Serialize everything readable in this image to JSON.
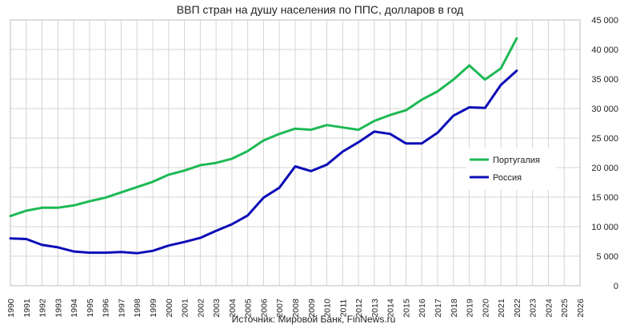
{
  "chart_data": {
    "type": "line",
    "title": "ВВП стран на душу населения по ППС, долларов в год",
    "source_note": "Источник: Мировой Банк, FinNews.ru",
    "xlabel": "",
    "ylabel": "",
    "x_range": [
      1990,
      2026
    ],
    "ylim": [
      0,
      45000
    ],
    "y_ticks": [
      0,
      5000,
      10000,
      15000,
      20000,
      25000,
      30000,
      35000,
      40000,
      45000
    ],
    "y_tick_labels": [
      "0",
      "5 000",
      "10 000",
      "15 000",
      "20 000",
      "25 000",
      "30 000",
      "35 000",
      "40 000",
      "45 000"
    ],
    "x_ticks": [
      1990,
      1991,
      1992,
      1993,
      1994,
      1995,
      1996,
      1997,
      1998,
      1999,
      2000,
      2001,
      2002,
      2003,
      2004,
      2005,
      2006,
      2007,
      2008,
      2009,
      2010,
      2011,
      2012,
      2013,
      2014,
      2015,
      2016,
      2017,
      2018,
      2019,
      2020,
      2021,
      2022,
      2023,
      2024,
      2025,
      2026
    ],
    "x_tick_labels": [
      "1990",
      "1991",
      "1992",
      "1993",
      "1994",
      "1995",
      "1996",
      "1997",
      "1998",
      "1999",
      "2000",
      "2001",
      "2002",
      "2003",
      "2004",
      "2005",
      "2006",
      "2007",
      "2008",
      "2009",
      "2010",
      "2011",
      "2012",
      "2013",
      "2014",
      "2015",
      "2016",
      "2017",
      "2018",
      "2019",
      "2020",
      "2021",
      "2022",
      "2023",
      "2024",
      "2025",
      "2026"
    ],
    "grid": true,
    "y_axis_side": "right",
    "legend_placement": "right",
    "series": [
      {
        "name": "Португалия",
        "color": "#1db954",
        "x": [
          1990,
          1991,
          1992,
          1993,
          1994,
          1995,
          1996,
          1997,
          1998,
          1999,
          2000,
          2001,
          2002,
          2003,
          2004,
          2005,
          2006,
          2007,
          2008,
          2009,
          2010,
          2011,
          2012,
          2013,
          2014,
          2015,
          2016,
          2017,
          2018,
          2019,
          2020,
          2021,
          2022
        ],
        "values": [
          11800,
          12700,
          13200,
          13200,
          13600,
          14300,
          14900,
          15800,
          16700,
          17600,
          18800,
          19500,
          20400,
          20800,
          21500,
          22800,
          24600,
          25700,
          26600,
          26400,
          27200,
          26800,
          26400,
          27900,
          28900,
          29700,
          31500,
          32900,
          34900,
          37300,
          34900,
          36800,
          41900
        ]
      },
      {
        "name": "Россия",
        "color": "#0c0cb8",
        "x": [
          1990,
          1991,
          1992,
          1993,
          1994,
          1995,
          1996,
          1997,
          1998,
          1999,
          2000,
          2001,
          2002,
          2003,
          2004,
          2005,
          2006,
          2007,
          2008,
          2009,
          2010,
          2011,
          2012,
          2013,
          2014,
          2015,
          2016,
          2017,
          2018,
          2019,
          2020,
          2021,
          2022
        ],
        "values": [
          8000,
          7900,
          6900,
          6500,
          5800,
          5600,
          5600,
          5700,
          5500,
          5900,
          6800,
          7400,
          8100,
          9300,
          10400,
          11900,
          14900,
          16600,
          20200,
          19400,
          20500,
          22700,
          24300,
          26100,
          25700,
          24100,
          24100,
          25900,
          28800,
          30200,
          30100,
          34000,
          36400
        ]
      }
    ]
  }
}
